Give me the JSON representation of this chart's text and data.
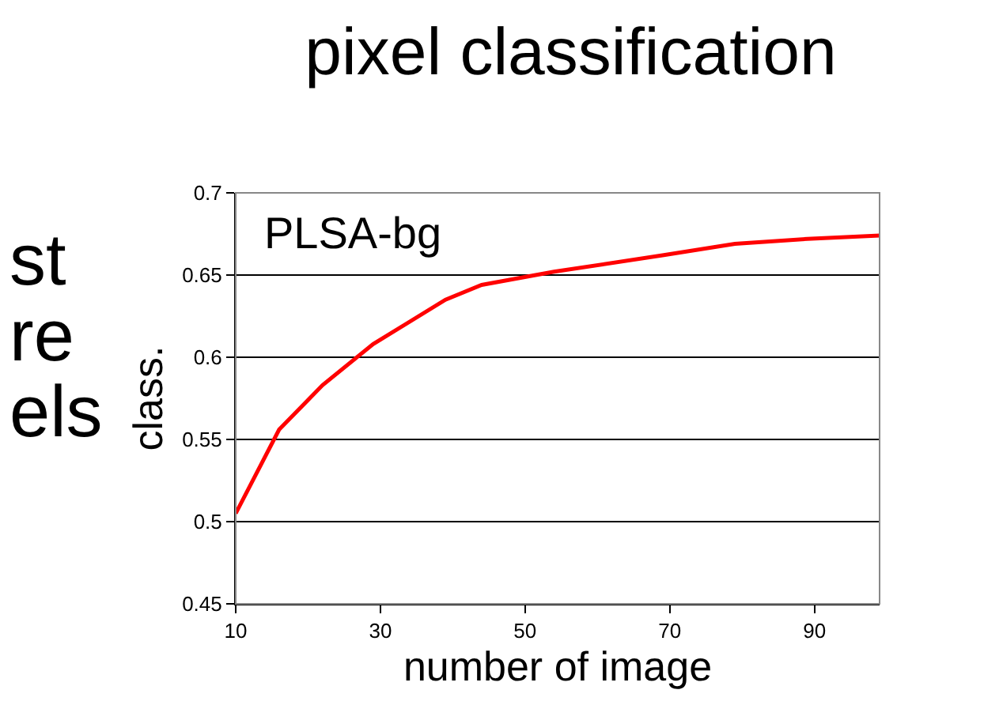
{
  "chart_data": {
    "type": "line",
    "title": "pixel classification",
    "xlabel": "number of image",
    "ylabel": "class.",
    "annotations": [
      "st",
      "re",
      "els",
      "PLSA-bg"
    ],
    "x": [
      10,
      16,
      22,
      29,
      39,
      44,
      54,
      69,
      79,
      89,
      99
    ],
    "series": [
      {
        "color": "#ff0000",
        "values": [
          0.505,
          0.556,
          0.583,
          0.608,
          0.635,
          0.644,
          0.652,
          0.662,
          0.669,
          0.672,
          0.674
        ]
      }
    ],
    "xlim": [
      10,
      99
    ],
    "xticks": [
      10,
      30,
      50,
      70,
      90
    ],
    "ylim": [
      0.45,
      0.7
    ],
    "yticks": [
      0.45,
      0.5,
      0.55,
      0.6,
      0.65,
      0.7
    ],
    "grid": "y",
    "marker": "none",
    "line_style": "solid"
  }
}
